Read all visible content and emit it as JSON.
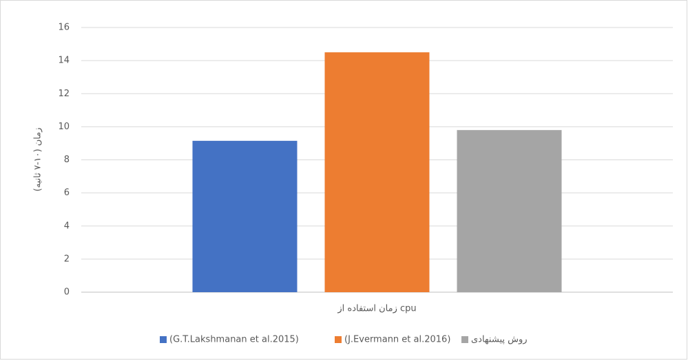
{
  "chart_data": {
    "type": "bar",
    "categories": [
      "زمان استفاده از cpu"
    ],
    "y_label": "زمان (۱۰-۷ ثانیه)",
    "series": [
      {
        "name": "(G.T.Lakshmanan et al.2015)",
        "color": "#4472c4",
        "values": [
          9.15
        ]
      },
      {
        "name": "(J.Evermann et al.2016)",
        "color": "#ed7d31",
        "values": [
          14.5
        ]
      },
      {
        "name": "روش پیشنهادی",
        "color": "#a5a5a5",
        "values": [
          9.8
        ]
      }
    ],
    "ylim": [
      0,
      16
    ],
    "yticks": [
      0,
      2,
      4,
      6,
      8,
      10,
      12,
      14,
      16
    ],
    "grid": true,
    "legend": "bottom"
  }
}
